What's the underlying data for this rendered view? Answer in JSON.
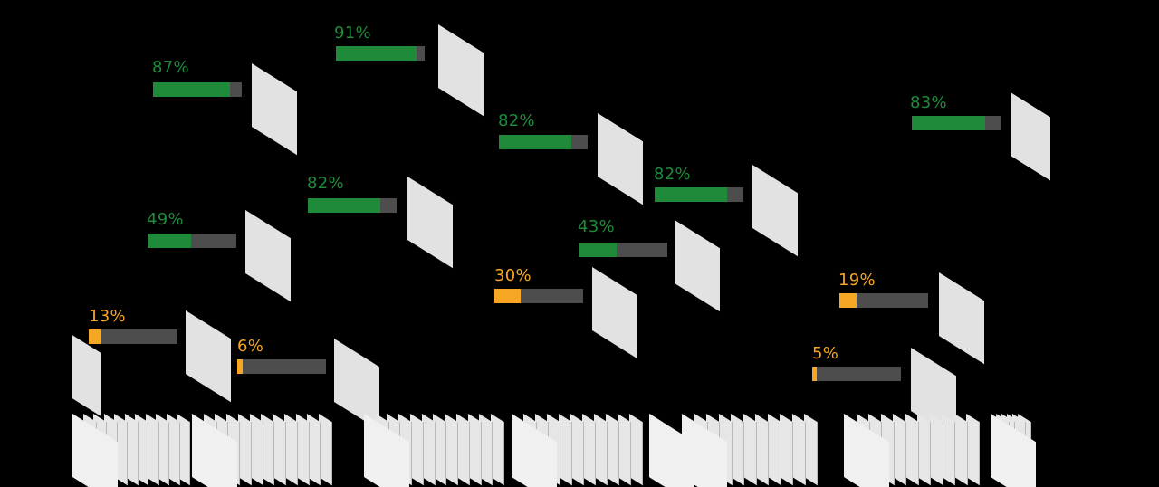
{
  "colors": {
    "high": "#1f8a3a",
    "low": "#f5a623",
    "track": "#4d4d4d",
    "card": "#e2e2e2",
    "background": "#000000"
  },
  "items": [
    {
      "label": "87%",
      "value": 0.87,
      "level": "high"
    },
    {
      "label": "91%",
      "value": 0.91,
      "level": "high"
    },
    {
      "label": "82%",
      "value": 0.82,
      "level": "high"
    },
    {
      "label": "83%",
      "value": 0.83,
      "level": "high"
    },
    {
      "label": "82%",
      "value": 0.82,
      "level": "high"
    },
    {
      "label": "82%",
      "value": 0.82,
      "level": "high"
    },
    {
      "label": "49%",
      "value": 0.49,
      "level": "high"
    },
    {
      "label": "43%",
      "value": 0.43,
      "level": "high"
    },
    {
      "label": "30%",
      "value": 0.3,
      "level": "low"
    },
    {
      "label": "19%",
      "value": 0.19,
      "level": "low"
    },
    {
      "label": "13%",
      "value": 0.13,
      "level": "low"
    },
    {
      "label": "6%",
      "value": 0.06,
      "level": "low"
    },
    {
      "label": "5%",
      "value": 0.05,
      "level": "low"
    }
  ]
}
